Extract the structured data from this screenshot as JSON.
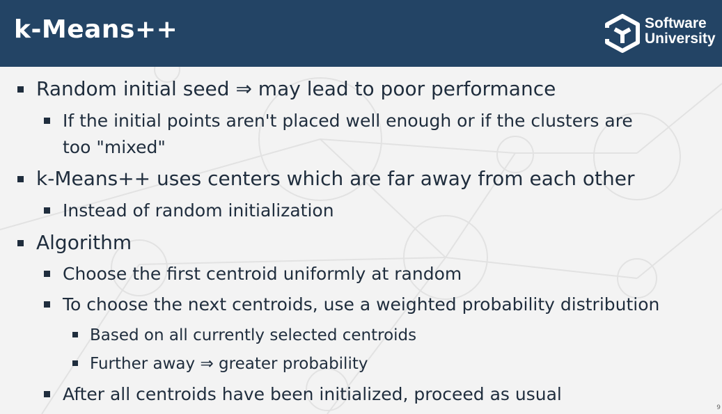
{
  "slide": {
    "title": "k-Means++",
    "logo": {
      "line1": "Software",
      "line2": "University"
    },
    "page_number": "9"
  },
  "bullets": [
    {
      "level": 1,
      "text": "Random initial seed ⇒ may lead to poor performance"
    },
    {
      "level": 2,
      "text": "If the initial points aren't placed well enough or if the clusters are"
    },
    {
      "level": 2,
      "text": "too \"mixed\"",
      "continuation": true
    },
    {
      "level": 1,
      "text": "k-Means++ uses centers which are far away  from each other"
    },
    {
      "level": 2,
      "text": "Instead of random initialization"
    },
    {
      "level": 1,
      "text": "Algorithm"
    },
    {
      "level": 2,
      "text": "Choose the first centroid uniformly at random"
    },
    {
      "level": 2,
      "text": "To choose the next centroids, use a weighted probability distribution"
    },
    {
      "level": 3,
      "text": "Based on all currently selected centroids"
    },
    {
      "level": 3,
      "text": "Further away ⇒ greater probability"
    },
    {
      "level": 2,
      "text": "After all centroids have been initialized, proceed as usual"
    }
  ]
}
